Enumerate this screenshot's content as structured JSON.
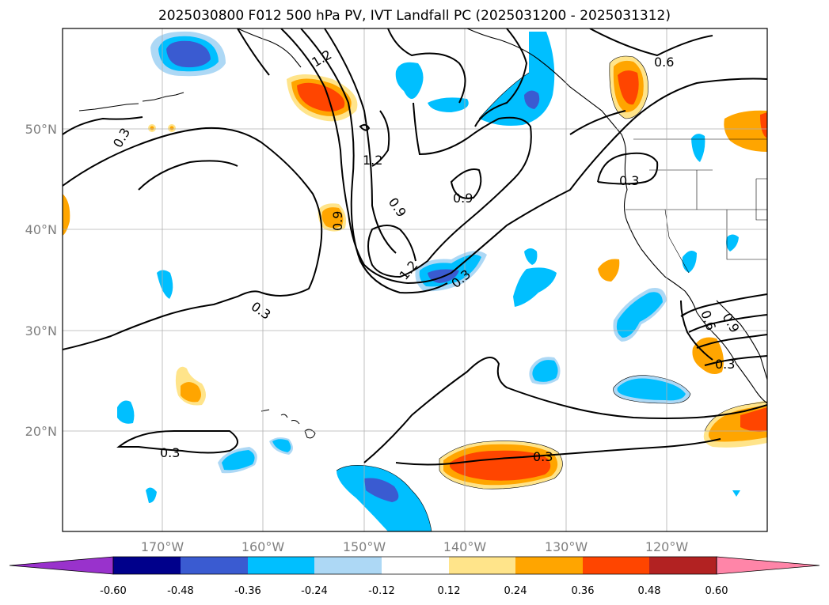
{
  "title": "2025030800 F012 500 hPa PV, IVT Landfall PC (2025031200 - 2025031312)",
  "map": {
    "lon_ticks": [
      "170°W",
      "160°W",
      "150°W",
      "140°W",
      "130°W",
      "120°W"
    ],
    "lat_ticks": [
      "50°N",
      "40°N",
      "30°N",
      "20°N"
    ],
    "gridlines": true
  },
  "contour_labels": [
    "0.3",
    "0.6",
    "0.9",
    "1.2"
  ],
  "colorbar": {
    "orientation": "horizontal",
    "extend": "both",
    "levels": [
      "-0.60",
      "-0.48",
      "-0.36",
      "-0.24",
      "-0.12",
      "0.12",
      "0.24",
      "0.36",
      "0.48",
      "0.60"
    ],
    "colors": [
      "#9932cc",
      "#00008b",
      "#3a5bd1",
      "#00bfff",
      "#add8f5",
      "#ffffff",
      "#ffe48a",
      "#ffa500",
      "#ff4500",
      "#b22222",
      "#ff85a8"
    ]
  }
}
